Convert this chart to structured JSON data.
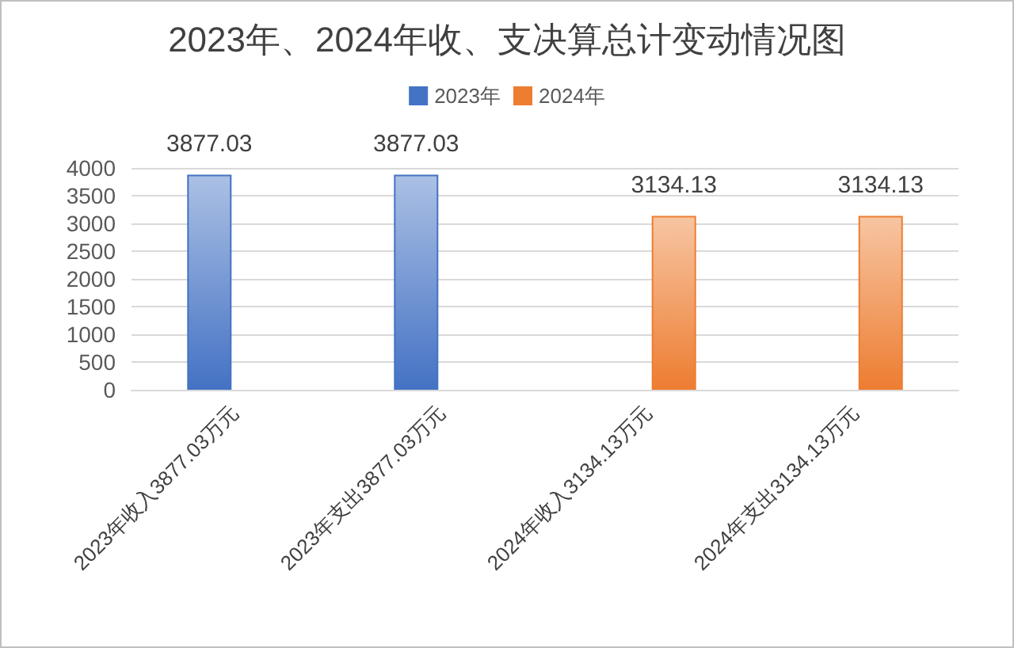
{
  "chart_data": {
    "type": "bar",
    "title": "2023年、2024年收、支决算总计变动情况图",
    "categories": [
      "2023年收入3877.03万元",
      "2023年支出3877.03万元",
      "2024年收入3134.13万元",
      "2024年支出3134.13万元"
    ],
    "series": [
      {
        "name": "2023年",
        "color": "#4472c4",
        "values": [
          3877.03,
          3877.03,
          null,
          null
        ]
      },
      {
        "name": "2024年",
        "color": "#ed7d31",
        "values": [
          null,
          null,
          3134.13,
          3134.13
        ]
      }
    ],
    "ylim": [
      0,
      4000
    ],
    "yticks": [
      0,
      500,
      1000,
      1500,
      2000,
      2500,
      3000,
      3500,
      4000
    ],
    "grid": "y",
    "legend": "top",
    "data_labels": true
  }
}
